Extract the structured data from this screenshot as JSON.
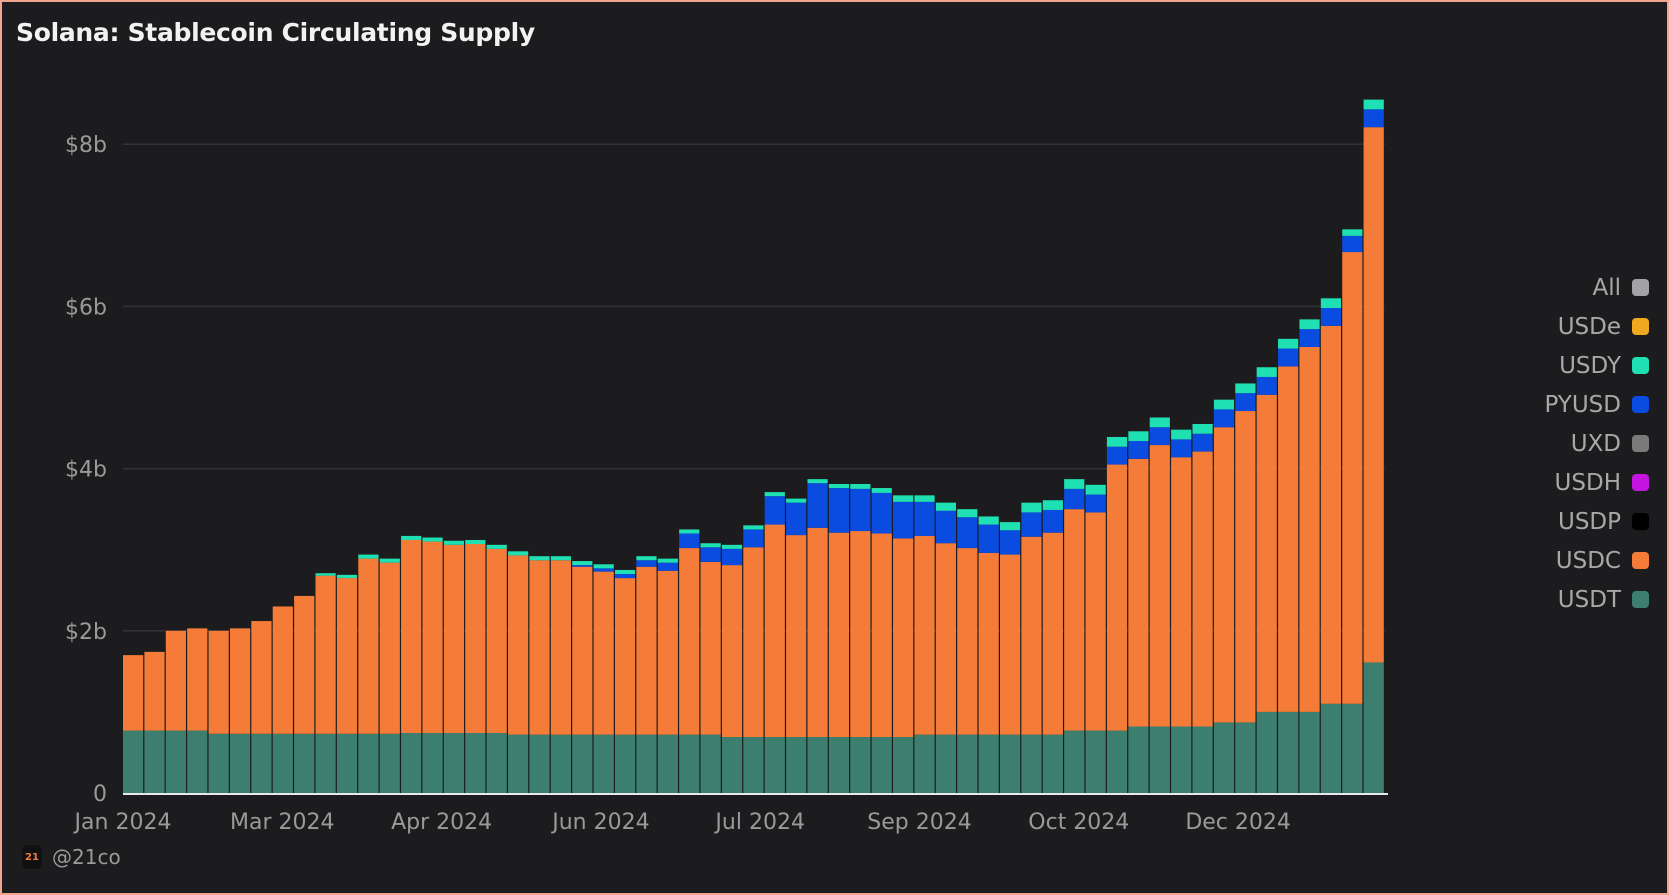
{
  "title": "Solana: Stablecoin Circulating Supply",
  "watermark": {
    "logo": "21",
    "handle": "@21co"
  },
  "colors": {
    "background": "#1c1c1e",
    "border": "#f0a58f",
    "grid": "#333336",
    "axis_text": "#9a9a9a"
  },
  "legend": [
    {
      "label": "All",
      "color": "#a3a3a6"
    },
    {
      "label": "USDe",
      "color": "#f0a820"
    },
    {
      "label": "USDY",
      "color": "#1fe0b2"
    },
    {
      "label": "PYUSD",
      "color": "#0a4be0"
    },
    {
      "label": "UXD",
      "color": "#7a7a7a"
    },
    {
      "label": "USDH",
      "color": "#c414e0"
    },
    {
      "label": "USDP",
      "color": "#000000"
    },
    {
      "label": "USDC",
      "color": "#f57c38"
    },
    {
      "label": "USDT",
      "color": "#3d7f6e"
    }
  ],
  "chart_data": {
    "type": "bar",
    "stacked": true,
    "title": "Solana: Stablecoin Circulating Supply",
    "xlabel": "",
    "ylabel": "",
    "unit": "billion USD",
    "ylim": [
      0,
      8.6
    ],
    "y_ticks": [
      0,
      2,
      4,
      6,
      8
    ],
    "y_tick_labels": [
      "0",
      "$2b",
      "$4b",
      "$6b",
      "$8b"
    ],
    "x_tick_labels": [
      "Jan 2024",
      "Mar 2024",
      "Apr 2024",
      "Jun 2024",
      "Jul 2024",
      "Sep 2024",
      "Oct 2024",
      "Dec 2024"
    ],
    "grid": true,
    "legend_position": "right",
    "x": [
      "2024-01-01",
      "2024-01-08",
      "2024-01-15",
      "2024-01-22",
      "2024-01-29",
      "2024-02-05",
      "2024-02-12",
      "2024-02-19",
      "2024-02-26",
      "2024-03-04",
      "2024-03-11",
      "2024-03-18",
      "2024-03-25",
      "2024-04-01",
      "2024-04-08",
      "2024-04-15",
      "2024-04-22",
      "2024-04-29",
      "2024-05-06",
      "2024-05-13",
      "2024-05-20",
      "2024-05-27",
      "2024-06-03",
      "2024-06-10",
      "2024-06-17",
      "2024-06-24",
      "2024-07-01",
      "2024-07-08",
      "2024-07-15",
      "2024-07-22",
      "2024-07-29",
      "2024-08-05",
      "2024-08-12",
      "2024-08-19",
      "2024-08-26",
      "2024-09-02",
      "2024-09-09",
      "2024-09-16",
      "2024-09-23",
      "2024-09-30",
      "2024-10-07",
      "2024-10-14",
      "2024-10-21",
      "2024-10-28",
      "2024-11-04",
      "2024-11-11",
      "2024-11-18",
      "2024-11-25",
      "2024-12-02",
      "2024-12-09",
      "2024-12-16",
      "2024-12-23",
      "2024-12-30",
      "2025-01-06",
      "2025-01-13",
      "2025-01-20",
      "2025-01-27",
      "2025-02-03",
      "2025-02-10"
    ],
    "series": [
      {
        "name": "USDT",
        "color": "#3d7f6e",
        "values": [
          0.77,
          0.77,
          0.77,
          0.77,
          0.73,
          0.73,
          0.73,
          0.73,
          0.73,
          0.73,
          0.73,
          0.73,
          0.73,
          0.74,
          0.74,
          0.74,
          0.74,
          0.74,
          0.72,
          0.72,
          0.72,
          0.72,
          0.72,
          0.72,
          0.72,
          0.72,
          0.72,
          0.72,
          0.69,
          0.69,
          0.69,
          0.69,
          0.69,
          0.69,
          0.69,
          0.69,
          0.69,
          0.72,
          0.72,
          0.72,
          0.72,
          0.72,
          0.72,
          0.72,
          0.77,
          0.77,
          0.77,
          0.82,
          0.82,
          0.82,
          0.82,
          0.87,
          0.87,
          1.0,
          1.0,
          1.0,
          1.1,
          1.1,
          1.61
        ]
      },
      {
        "name": "USDC",
        "color": "#f57c38",
        "values": [
          0.93,
          0.97,
          1.23,
          1.26,
          1.27,
          1.3,
          1.39,
          1.57,
          1.7,
          1.95,
          1.92,
          2.16,
          2.11,
          2.38,
          2.36,
          2.32,
          2.33,
          2.27,
          2.21,
          2.15,
          2.15,
          2.07,
          2.01,
          1.93,
          2.07,
          2.02,
          2.3,
          2.13,
          2.12,
          2.34,
          2.62,
          2.49,
          2.58,
          2.52,
          2.54,
          2.51,
          2.45,
          2.45,
          2.36,
          2.3,
          2.24,
          2.22,
          2.44,
          2.49,
          2.73,
          2.69,
          3.28,
          3.3,
          3.47,
          3.32,
          3.39,
          3.64,
          3.84,
          3.91,
          4.26,
          4.5,
          4.66,
          5.57,
          6.6
        ]
      },
      {
        "name": "PYUSD",
        "color": "#0a4be0",
        "values": [
          0,
          0,
          0,
          0,
          0,
          0,
          0,
          0,
          0,
          0,
          0,
          0,
          0,
          0,
          0,
          0,
          0,
          0,
          0,
          0,
          0,
          0.02,
          0.04,
          0.05,
          0.08,
          0.1,
          0.18,
          0.18,
          0.2,
          0.22,
          0.35,
          0.4,
          0.55,
          0.55,
          0.52,
          0.5,
          0.45,
          0.42,
          0.4,
          0.38,
          0.35,
          0.3,
          0.3,
          0.28,
          0.25,
          0.22,
          0.22,
          0.22,
          0.22,
          0.22,
          0.22,
          0.22,
          0.22,
          0.22,
          0.22,
          0.22,
          0.22,
          0.2,
          0.22
        ]
      },
      {
        "name": "USDY",
        "color": "#1fe0b2",
        "values": [
          0,
          0,
          0,
          0,
          0,
          0,
          0,
          0,
          0,
          0.03,
          0.04,
          0.05,
          0.05,
          0.05,
          0.05,
          0.05,
          0.05,
          0.05,
          0.05,
          0.05,
          0.05,
          0.05,
          0.05,
          0.05,
          0.05,
          0.05,
          0.05,
          0.05,
          0.05,
          0.05,
          0.05,
          0.05,
          0.05,
          0.05,
          0.06,
          0.06,
          0.08,
          0.08,
          0.1,
          0.1,
          0.1,
          0.1,
          0.12,
          0.12,
          0.12,
          0.12,
          0.12,
          0.12,
          0.12,
          0.12,
          0.12,
          0.12,
          0.12,
          0.12,
          0.12,
          0.12,
          0.12,
          0.08,
          0.12
        ]
      }
    ]
  }
}
